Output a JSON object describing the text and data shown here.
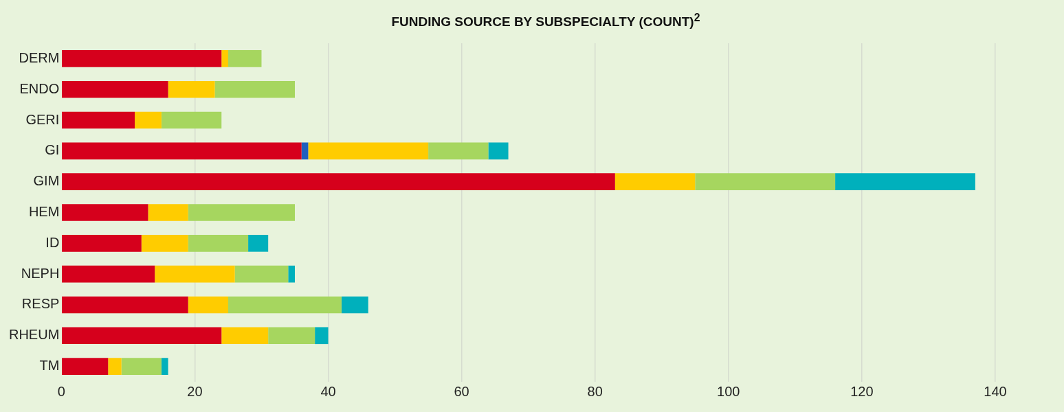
{
  "chart_data": {
    "type": "bar",
    "orientation": "horizontal",
    "stacked": true,
    "title": "FUNDING SOURCE BY SUBSPECIALTY (COUNT)$^{2}$",
    "categories": [
      "DERM",
      "ENDO",
      "GERI",
      "GI",
      "GIM",
      "HEM",
      "ID",
      "NEPH",
      "RESP",
      "RHEUM",
      "TM"
    ],
    "series": [
      {
        "color": "#d6001c",
        "values": [
          24,
          16,
          11,
          36,
          83,
          13,
          12,
          14,
          19,
          24,
          7
        ]
      },
      {
        "color": "#1f5fbf",
        "values": [
          0,
          0,
          0,
          1,
          0,
          0,
          0,
          0,
          0,
          0,
          0
        ]
      },
      {
        "color": "#ffcc00",
        "values": [
          1,
          7,
          4,
          18,
          12,
          6,
          7,
          12,
          6,
          7,
          2
        ]
      },
      {
        "color": "#a6d65f",
        "values": [
          5,
          12,
          9,
          9,
          21,
          16,
          9,
          8,
          17,
          7,
          6
        ]
      },
      {
        "color": "#00b0bc",
        "values": [
          0,
          0,
          0,
          3,
          21,
          0,
          3,
          1,
          4,
          2,
          1
        ]
      }
    ],
    "xlim": [
      0,
      140
    ],
    "xticks": [
      0,
      20,
      40,
      60,
      80,
      100,
      120,
      140
    ],
    "grid": "x",
    "legend": false
  }
}
